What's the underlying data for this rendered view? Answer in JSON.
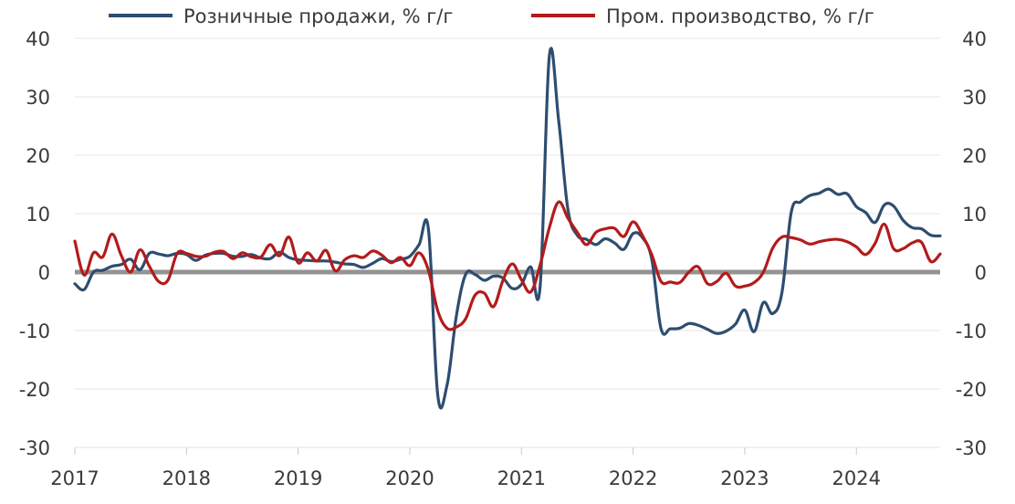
{
  "chart_data": {
    "type": "line",
    "title": "",
    "xlabel": "",
    "ylabel": "",
    "ylim": [
      -30,
      40
    ],
    "y_ticks": [
      40,
      30,
      20,
      10,
      0,
      -10,
      -20,
      -30
    ],
    "secondary_y_ticks": [
      40,
      30,
      20,
      10,
      0,
      -10,
      -20,
      -30
    ],
    "x_range": [
      2017.0,
      2024.75
    ],
    "x_ticks": [
      {
        "value": 2017,
        "label": "2017"
      },
      {
        "value": 2018,
        "label": "2018"
      },
      {
        "value": 2019,
        "label": "2019"
      },
      {
        "value": 2020,
        "label": "2020"
      },
      {
        "value": 2021,
        "label": "2021"
      },
      {
        "value": 2022,
        "label": "2022"
      },
      {
        "value": 2023,
        "label": "2023"
      },
      {
        "value": 2024,
        "label": "2024"
      }
    ],
    "grid": true,
    "legend_position": "top",
    "zero_line_color": "#939393",
    "series": [
      {
        "name": "Розничные продажи, % г/г",
        "color": "#2e4d70",
        "points": [
          [
            2017.0,
            -2.0
          ],
          [
            2017.083,
            -3.0
          ],
          [
            2017.167,
            0.0
          ],
          [
            2017.25,
            0.3
          ],
          [
            2017.333,
            1.0
          ],
          [
            2017.417,
            1.3
          ],
          [
            2017.5,
            2.2
          ],
          [
            2017.583,
            0.4
          ],
          [
            2017.667,
            3.2
          ],
          [
            2017.75,
            3.1
          ],
          [
            2017.833,
            2.8
          ],
          [
            2017.917,
            3.2
          ],
          [
            2018.0,
            3.0
          ],
          [
            2018.083,
            2.0
          ],
          [
            2018.167,
            2.9
          ],
          [
            2018.25,
            3.2
          ],
          [
            2018.333,
            3.2
          ],
          [
            2018.417,
            2.7
          ],
          [
            2018.5,
            2.7
          ],
          [
            2018.583,
            3.0
          ],
          [
            2018.667,
            2.4
          ],
          [
            2018.75,
            2.3
          ],
          [
            2018.833,
            3.4
          ],
          [
            2018.917,
            2.5
          ],
          [
            2019.0,
            2.1
          ],
          [
            2019.083,
            2.0
          ],
          [
            2019.167,
            1.9
          ],
          [
            2019.25,
            1.9
          ],
          [
            2019.333,
            1.7
          ],
          [
            2019.417,
            1.4
          ],
          [
            2019.5,
            1.3
          ],
          [
            2019.583,
            0.8
          ],
          [
            2019.667,
            1.5
          ],
          [
            2019.75,
            2.3
          ],
          [
            2019.833,
            1.8
          ],
          [
            2019.917,
            2.2
          ],
          [
            2020.0,
            2.7
          ],
          [
            2020.083,
            4.7
          ],
          [
            2020.167,
            7.3
          ],
          [
            2020.25,
            -21.0
          ],
          [
            2020.333,
            -19.4
          ],
          [
            2020.417,
            -7.5
          ],
          [
            2020.5,
            -0.4
          ],
          [
            2020.583,
            -0.4
          ],
          [
            2020.667,
            -1.4
          ],
          [
            2020.75,
            -0.7
          ],
          [
            2020.833,
            -1.0
          ],
          [
            2020.917,
            -2.8
          ],
          [
            2021.0,
            -2.1
          ],
          [
            2021.083,
            0.9
          ],
          [
            2021.167,
            -2.5
          ],
          [
            2021.25,
            37.0
          ],
          [
            2021.333,
            26.0
          ],
          [
            2021.417,
            10.6
          ],
          [
            2021.5,
            6.3
          ],
          [
            2021.583,
            5.6
          ],
          [
            2021.667,
            4.7
          ],
          [
            2021.75,
            5.7
          ],
          [
            2021.833,
            5.0
          ],
          [
            2021.917,
            3.9
          ],
          [
            2022.0,
            6.6
          ],
          [
            2022.083,
            5.9
          ],
          [
            2022.167,
            2.2
          ],
          [
            2022.25,
            -9.7
          ],
          [
            2022.333,
            -9.7
          ],
          [
            2022.417,
            -9.6
          ],
          [
            2022.5,
            -8.8
          ],
          [
            2022.583,
            -9.1
          ],
          [
            2022.667,
            -9.8
          ],
          [
            2022.75,
            -10.5
          ],
          [
            2022.833,
            -10.1
          ],
          [
            2022.917,
            -8.9
          ],
          [
            2023.0,
            -6.5
          ],
          [
            2023.083,
            -10.2
          ],
          [
            2023.167,
            -5.2
          ],
          [
            2023.25,
            -7.1
          ],
          [
            2023.333,
            -3.5
          ],
          [
            2023.417,
            10.3
          ],
          [
            2023.5,
            12.0
          ],
          [
            2023.583,
            13.1
          ],
          [
            2023.667,
            13.5
          ],
          [
            2023.75,
            14.2
          ],
          [
            2023.833,
            13.3
          ],
          [
            2023.917,
            13.4
          ],
          [
            2024.0,
            11.2
          ],
          [
            2024.083,
            10.2
          ],
          [
            2024.167,
            8.5
          ],
          [
            2024.25,
            11.5
          ],
          [
            2024.333,
            11.3
          ],
          [
            2024.417,
            8.9
          ],
          [
            2024.5,
            7.6
          ],
          [
            2024.583,
            7.4
          ],
          [
            2024.667,
            6.3
          ],
          [
            2024.75,
            6.2
          ]
        ]
      },
      {
        "name": "Пром. производство, % г/г",
        "color": "#b31b1b",
        "points": [
          [
            2017.0,
            5.3
          ],
          [
            2017.083,
            -0.5
          ],
          [
            2017.167,
            3.3
          ],
          [
            2017.25,
            2.6
          ],
          [
            2017.333,
            6.5
          ],
          [
            2017.417,
            2.8
          ],
          [
            2017.5,
            0.0
          ],
          [
            2017.583,
            3.8
          ],
          [
            2017.667,
            1.0
          ],
          [
            2017.75,
            -1.6
          ],
          [
            2017.833,
            -1.4
          ],
          [
            2017.917,
            3.2
          ],
          [
            2018.0,
            3.2
          ],
          [
            2018.083,
            2.7
          ],
          [
            2018.167,
            2.7
          ],
          [
            2018.25,
            3.4
          ],
          [
            2018.333,
            3.5
          ],
          [
            2018.417,
            2.3
          ],
          [
            2018.5,
            3.3
          ],
          [
            2018.583,
            2.6
          ],
          [
            2018.667,
            2.6
          ],
          [
            2018.75,
            4.7
          ],
          [
            2018.833,
            2.8
          ],
          [
            2018.917,
            6.0
          ],
          [
            2019.0,
            1.6
          ],
          [
            2019.083,
            3.3
          ],
          [
            2019.167,
            1.9
          ],
          [
            2019.25,
            3.7
          ],
          [
            2019.333,
            0.2
          ],
          [
            2019.417,
            2.1
          ],
          [
            2019.5,
            2.8
          ],
          [
            2019.583,
            2.5
          ],
          [
            2019.667,
            3.6
          ],
          [
            2019.75,
            2.9
          ],
          [
            2019.833,
            1.6
          ],
          [
            2019.917,
            2.5
          ],
          [
            2020.0,
            1.1
          ],
          [
            2020.083,
            3.3
          ],
          [
            2020.167,
            0.3
          ],
          [
            2020.25,
            -6.6
          ],
          [
            2020.333,
            -9.6
          ],
          [
            2020.417,
            -9.4
          ],
          [
            2020.5,
            -8.0
          ],
          [
            2020.583,
            -4.0
          ],
          [
            2020.667,
            -3.6
          ],
          [
            2020.75,
            -5.9
          ],
          [
            2020.833,
            -1.5
          ],
          [
            2020.917,
            1.4
          ],
          [
            2021.0,
            -1.3
          ],
          [
            2021.083,
            -3.4
          ],
          [
            2021.167,
            1.2
          ],
          [
            2021.25,
            7.6
          ],
          [
            2021.333,
            12.0
          ],
          [
            2021.417,
            9.2
          ],
          [
            2021.5,
            6.8
          ],
          [
            2021.583,
            4.7
          ],
          [
            2021.667,
            6.8
          ],
          [
            2021.75,
            7.4
          ],
          [
            2021.833,
            7.5
          ],
          [
            2021.917,
            6.1
          ],
          [
            2022.0,
            8.6
          ],
          [
            2022.083,
            6.3
          ],
          [
            2022.167,
            3.0
          ],
          [
            2022.25,
            -1.6
          ],
          [
            2022.333,
            -1.7
          ],
          [
            2022.417,
            -1.8
          ],
          [
            2022.5,
            0.0
          ],
          [
            2022.583,
            0.9
          ],
          [
            2022.667,
            -2.0
          ],
          [
            2022.75,
            -1.6
          ],
          [
            2022.833,
            -0.2
          ],
          [
            2022.917,
            -2.4
          ],
          [
            2023.0,
            -2.4
          ],
          [
            2023.083,
            -1.8
          ],
          [
            2023.167,
            0.0
          ],
          [
            2023.25,
            4.1
          ],
          [
            2023.333,
            6.0
          ],
          [
            2023.417,
            5.9
          ],
          [
            2023.5,
            5.5
          ],
          [
            2023.583,
            4.8
          ],
          [
            2023.667,
            5.2
          ],
          [
            2023.75,
            5.5
          ],
          [
            2023.833,
            5.6
          ],
          [
            2023.917,
            5.2
          ],
          [
            2024.0,
            4.3
          ],
          [
            2024.083,
            3.0
          ],
          [
            2024.167,
            4.9
          ],
          [
            2024.25,
            8.2
          ],
          [
            2024.333,
            4.0
          ],
          [
            2024.417,
            4.0
          ],
          [
            2024.5,
            5.0
          ],
          [
            2024.583,
            5.1
          ],
          [
            2024.667,
            1.8
          ],
          [
            2024.75,
            3.1
          ]
        ]
      }
    ]
  }
}
